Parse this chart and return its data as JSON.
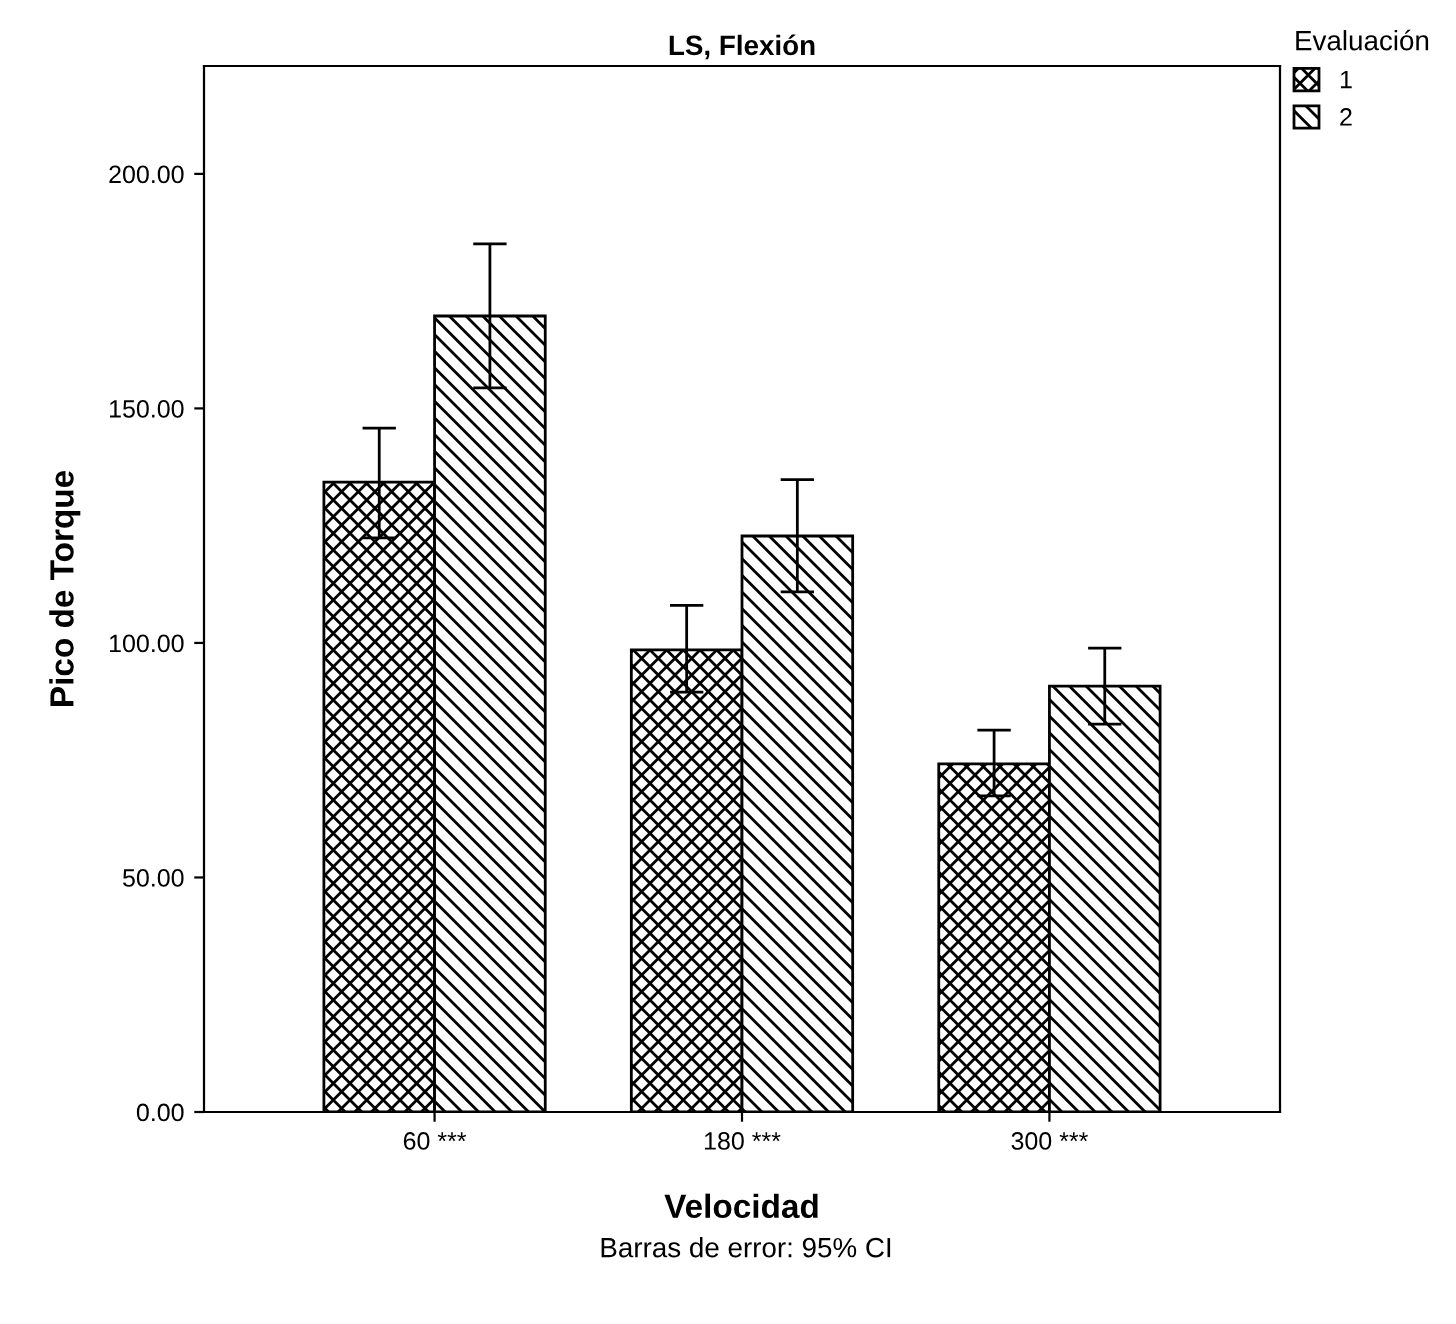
{
  "chart_data": {
    "type": "bar",
    "title": "LS, Flexión",
    "xlabel": "Velocidad",
    "ylabel": "Pico de Torque",
    "legend_title": "Evaluación",
    "categories": [
      "60 ***",
      "180 ***",
      "300 ***"
    ],
    "series": [
      {
        "name": "1",
        "color": "#000000",
        "values": [
          134.3,
          98.5,
          74.2
        ],
        "errors": [
          [
            122.4,
            145.8
          ],
          [
            89.5,
            108.0
          ],
          [
            67.4,
            81.4
          ]
        ]
      },
      {
        "name": "2",
        "color": "#000000",
        "values": [
          169.7,
          122.8,
          90.8
        ],
        "errors": [
          [
            154.4,
            185.1
          ],
          [
            110.9,
            134.8
          ],
          [
            82.7,
            98.9
          ]
        ]
      }
    ],
    "ylim": [
      0,
      223
    ],
    "yticks": [
      {
        "value": 0,
        "label": "0.00"
      },
      {
        "value": 50,
        "label": "50.00"
      },
      {
        "value": 100,
        "label": "100.00"
      },
      {
        "value": 150,
        "label": "150.00"
      },
      {
        "value": 200,
        "label": "200.00"
      }
    ],
    "grid": false,
    "legend": "top right",
    "annotations": [
      "Barras de error: 95% CI"
    ]
  }
}
